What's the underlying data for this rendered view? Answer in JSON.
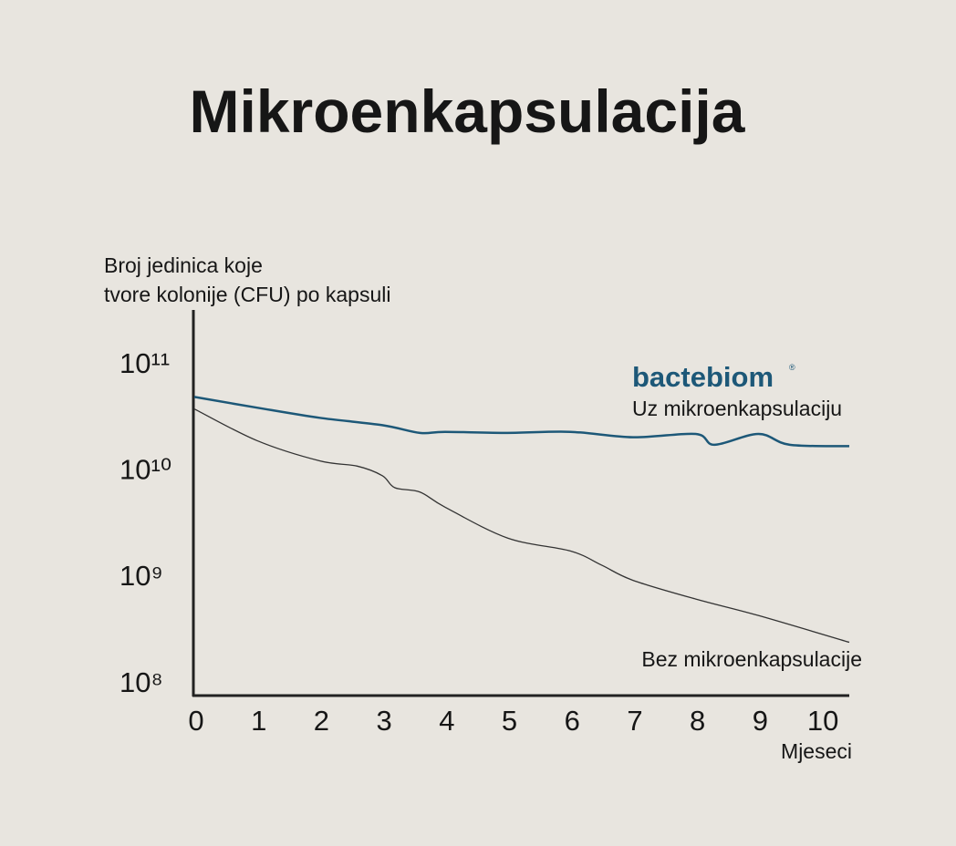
{
  "chart_data": {
    "type": "line",
    "title": "Mikroenkapsulacija",
    "y_label": [
      "Broj jedinica koje",
      "tvore kolonije (CFU) po kapsuli"
    ],
    "x_label": "Mjeseci",
    "brand": "bactebiom",
    "brand_mark": "®",
    "log_y": true,
    "xlim": [
      0,
      10.45
    ],
    "xticks": [
      0,
      1,
      2,
      3,
      4,
      5,
      6,
      7,
      8,
      9,
      10
    ],
    "ylim": [
      74000000,
      316000000000
    ],
    "yticks": [
      {
        "value": 100000000,
        "label": "10⁸"
      },
      {
        "value": 1000000000,
        "label": "10⁹"
      },
      {
        "value": 10000000000,
        "label": "10¹⁰"
      },
      {
        "value": 100000000000,
        "label": "10¹¹"
      }
    ],
    "series": [
      {
        "name": "Uz mikroenkapsulaciju",
        "color": "#1d5878",
        "x": [
          0,
          1,
          2,
          3,
          3.6,
          4,
          5,
          6,
          7,
          8,
          8.3,
          9,
          9.5,
          10.45
        ],
        "values": [
          48000000000,
          38000000000,
          30500000000,
          26000000000,
          22000000000,
          22500000000,
          22000000000,
          22500000000,
          20000000000,
          21500000000,
          17000000000,
          21500000000,
          17000000000,
          16500000000
        ]
      },
      {
        "name": "Bez mikroenkapsulacije",
        "color": "#333333",
        "x": [
          0,
          1,
          2,
          2.6,
          3,
          3.2,
          3.6,
          4,
          5,
          6,
          6.5,
          7,
          8,
          9,
          10.45
        ],
        "values": [
          37000000000,
          18600000000,
          12000000000,
          10700000000,
          8700000000,
          6700000000,
          6100000000,
          4400000000,
          2250000000,
          1700000000,
          1250000000,
          900000000,
          600000000,
          420000000,
          235000000
        ]
      }
    ]
  }
}
